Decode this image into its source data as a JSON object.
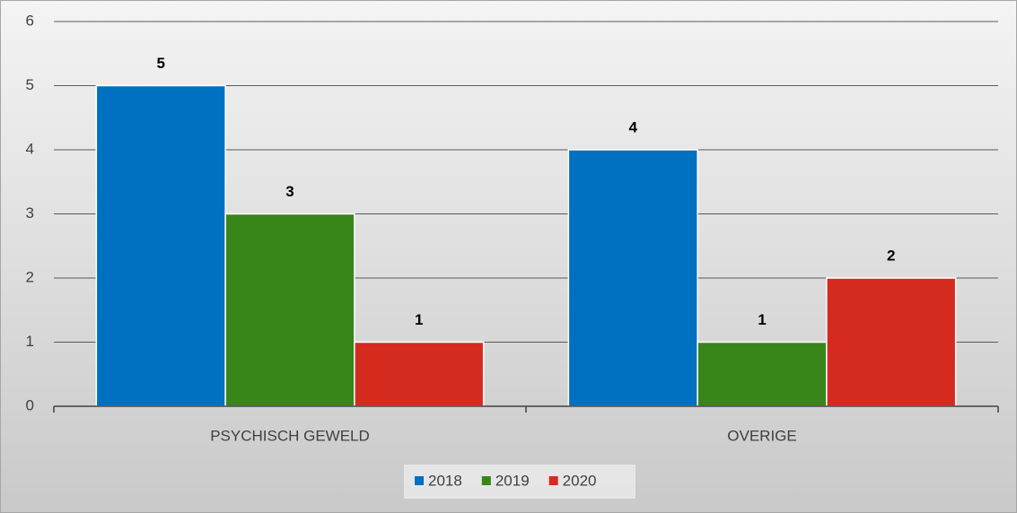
{
  "chart_data": {
    "type": "bar",
    "categories": [
      "PSYCHISCH GEWELD",
      "OVERIGE"
    ],
    "series": [
      {
        "name": "2018",
        "color": "#0070c0",
        "values": [
          5,
          4
        ]
      },
      {
        "name": "2019",
        "color": "#38861a",
        "values": [
          3,
          1
        ]
      },
      {
        "name": "2020",
        "color": "#d52b1e",
        "values": [
          1,
          2
        ]
      }
    ],
    "ylim": [
      0,
      6
    ],
    "yticks": [
      0,
      1,
      2,
      3,
      4,
      5,
      6
    ],
    "grid": true,
    "legend": "bottom",
    "data_labels": true
  }
}
